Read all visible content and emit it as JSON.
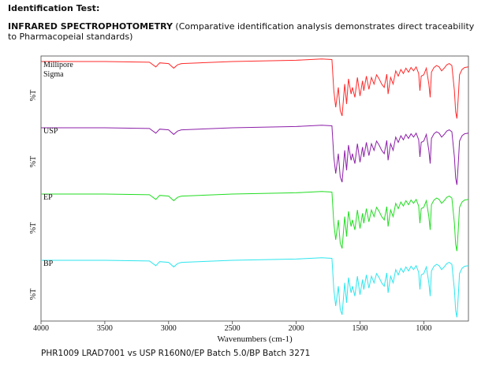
{
  "header": {
    "section_label": "Identification Test:",
    "technique": "INFRARED SPECTROPHOTOMETRY",
    "description": " (Comparative identification analysis demonstrates direct traceability to Pharmacopeial standards)"
  },
  "caption": "PHR1009 LRAD7001 vs USP R160N0/EP Batch 5.0/BP Batch 3271",
  "chart_data": {
    "type": "line",
    "xlabel": "Wavenumbers (cm-1)",
    "ylabel": "%T",
    "xlim": [
      4000,
      650
    ],
    "x_reversed": true,
    "xticks": [
      4000,
      3500,
      3000,
      2500,
      2000,
      1500,
      1000
    ],
    "grid": false,
    "legend": "none",
    "series": [
      {
        "name": "Millipore\nSigma",
        "color": "#ff2a2a"
      },
      {
        "name": "USP",
        "color": "#8c1fa8"
      },
      {
        "name": "EP",
        "color": "#22dd22"
      },
      {
        "name": "BP",
        "color": "#2ee6ee"
      }
    ],
    "spectrum_x": [
      4000,
      3500,
      3150,
      3100,
      3070,
      3000,
      2960,
      2930,
      2900,
      2500,
      2000,
      1800,
      1720,
      1705,
      1690,
      1670,
      1655,
      1640,
      1620,
      1605,
      1590,
      1570,
      1560,
      1540,
      1520,
      1500,
      1480,
      1470,
      1450,
      1430,
      1410,
      1390,
      1370,
      1350,
      1330,
      1310,
      1290,
      1280,
      1260,
      1240,
      1220,
      1200,
      1180,
      1160,
      1140,
      1120,
      1100,
      1080,
      1060,
      1040,
      1030,
      1020,
      1000,
      980,
      960,
      950,
      940,
      920,
      900,
      880,
      860,
      840,
      820,
      800,
      780,
      760,
      750,
      740,
      730,
      720,
      700,
      680,
      650
    ],
    "spectrum_t": [
      94,
      94,
      93,
      86,
      92,
      91,
      84,
      89,
      91,
      94,
      96,
      98,
      97,
      50,
      25,
      55,
      20,
      12,
      60,
      30,
      68,
      45,
      55,
      40,
      70,
      42,
      65,
      50,
      72,
      52,
      70,
      60,
      74,
      68,
      60,
      55,
      75,
      45,
      70,
      60,
      80,
      72,
      82,
      76,
      84,
      78,
      85,
      80,
      86,
      76,
      50,
      72,
      74,
      84,
      60,
      40,
      78,
      85,
      88,
      86,
      80,
      84,
      89,
      91,
      88,
      50,
      18,
      8,
      40,
      74,
      82,
      85,
      86
    ]
  }
}
